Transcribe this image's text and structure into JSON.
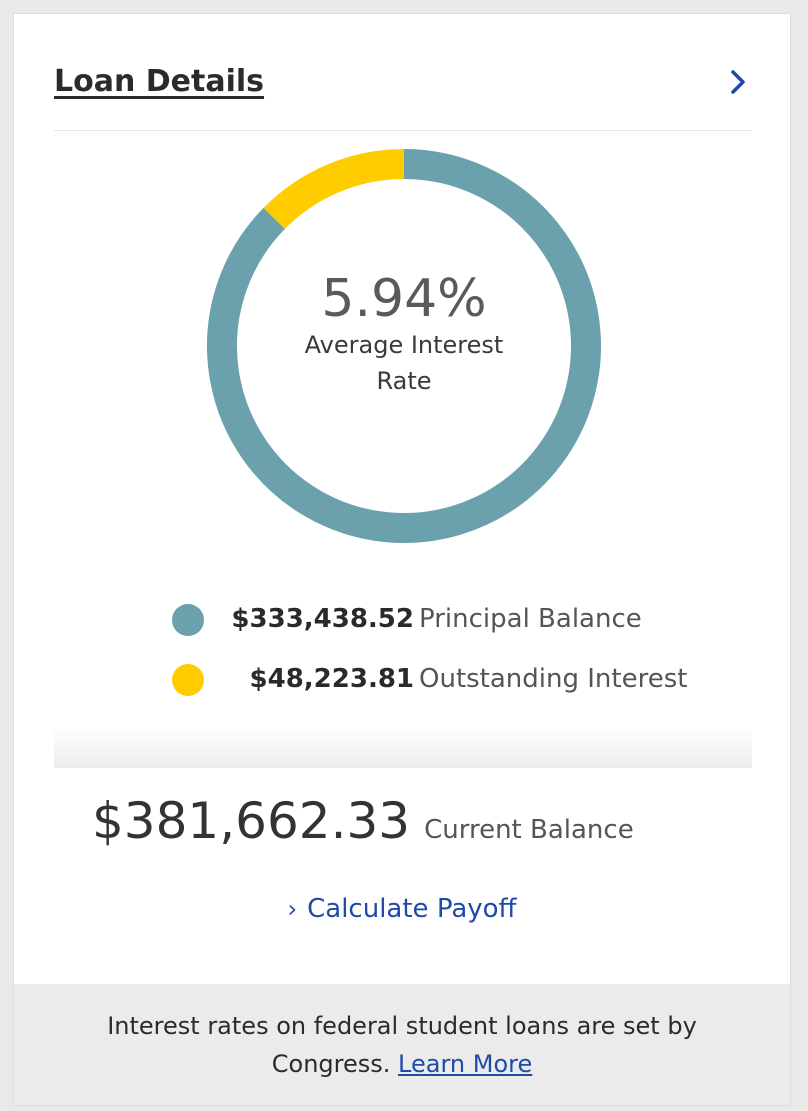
{
  "header": {
    "title": "Loan Details",
    "chevron_icon": "chevron-right-icon"
  },
  "chart_data": {
    "type": "pie",
    "donut": true,
    "center_value": "5.94%",
    "center_label": "Average Interest Rate",
    "slices": [
      {
        "label": "Principal Balance",
        "value": 333438.52,
        "display": "$333,438.52",
        "color": "#6aa1ad"
      },
      {
        "label": "Outstanding Interest",
        "value": 48223.81,
        "display": "$48,223.81",
        "color": "#ffcc00"
      }
    ]
  },
  "summary": {
    "current_balance": "$381,662.33",
    "current_balance_label": "Current Balance",
    "calculate_payoff": "Calculate Payoff",
    "calculate_icon": "chevron-right-icon"
  },
  "footer": {
    "text": "Interest rates on federal student loans are set by Congress.",
    "link": "Learn More"
  },
  "colors": {
    "link": "#1f4aa8",
    "principal": "#6aa1ad",
    "interest": "#ffcc00"
  }
}
